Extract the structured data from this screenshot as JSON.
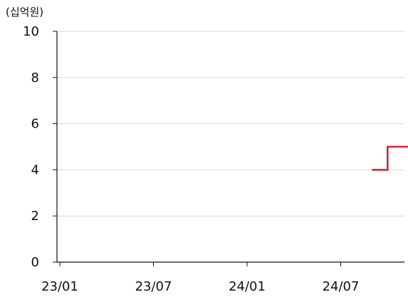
{
  "chart_data": {
    "type": "line",
    "unit_label": "(십억원)",
    "y_ticks": [
      "0",
      "2",
      "4",
      "6",
      "8",
      "10"
    ],
    "x_ticks": [
      "23/01",
      "23/07",
      "24/01",
      "24/07"
    ],
    "ylim": [
      0,
      10
    ],
    "x_range": [
      "2023-01",
      "2024-12"
    ],
    "grid": true,
    "step": true,
    "series": [
      {
        "color": "#e3202e",
        "points": [
          {
            "x": "2024-09",
            "y": 4
          },
          {
            "x": "2024-10",
            "y": 4
          },
          {
            "x": "2024-10",
            "y": 5
          },
          {
            "x": "2024-12",
            "y": 5
          }
        ]
      }
    ]
  },
  "colors": {
    "grid": "#d9d9d9",
    "axis": "#111111",
    "series": "#e3202e"
  }
}
